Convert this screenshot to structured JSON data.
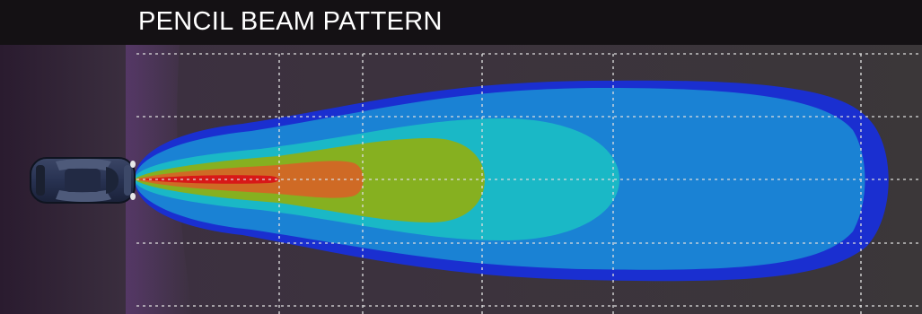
{
  "title": "PENCIL BEAM PATTERN",
  "colors": {
    "page_background": "#121012",
    "plot_background": "#3a3638",
    "grid_line": "#dcdcdc",
    "zone_outer": "#1a2fd0",
    "zone_2": "#1a82d4",
    "zone_3": "#1ab8c6",
    "zone_4": "#86b020",
    "zone_5": "#cf6a25",
    "zone_core": "#d81818",
    "vehicle_body": "#2b3550"
  },
  "icons": {
    "vehicle": "car-top-view-icon"
  },
  "legend_zones": [
    "outer-blue-zone",
    "light-blue-zone",
    "cyan-zone",
    "yellow-green-zone",
    "orange-zone",
    "red-core-zone"
  ]
}
